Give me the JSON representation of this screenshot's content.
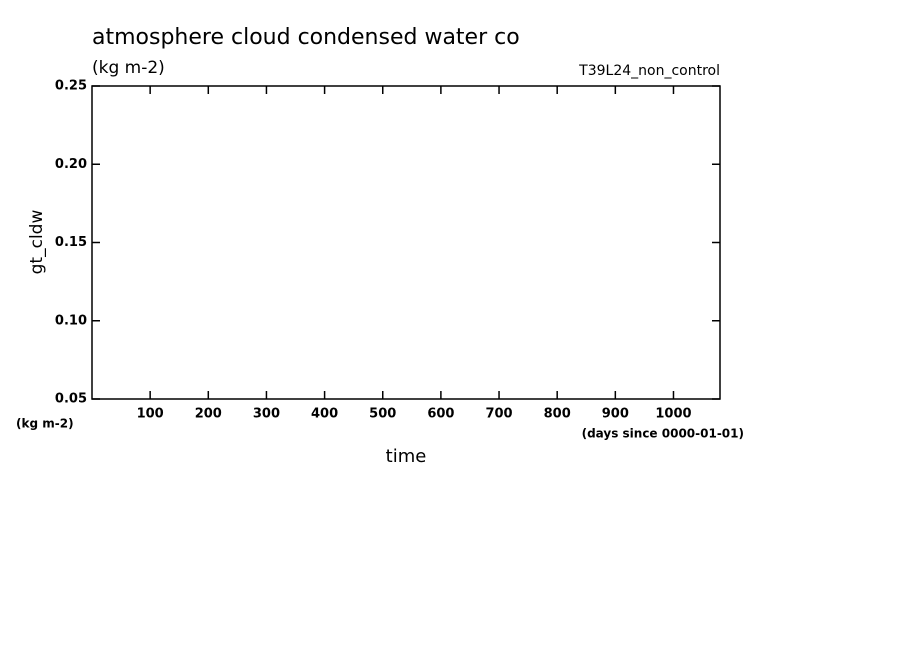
{
  "chart_data": {
    "type": "line",
    "title": "atmosphere cloud condensed water co",
    "subtitle": "(kg m-2)",
    "annotation": "T39L24_non_control",
    "y_label": "gt_cldw",
    "y_unit": "(kg m-2)",
    "x_label": "time",
    "x_unit": "(days since 0000-01-01)",
    "x": [],
    "series": [],
    "xlim": [
      0,
      1080
    ],
    "xticks": [
      100,
      200,
      300,
      400,
      500,
      600,
      700,
      800,
      900,
      1000
    ],
    "ylim": [
      0.05,
      0.25
    ],
    "yticks": [
      0.05,
      {
        "value": 0.1,
        "label": "0.10"
      },
      0.15,
      {
        "value": 0.2,
        "label": "0.20"
      },
      0.25
    ],
    "grid": false
  }
}
